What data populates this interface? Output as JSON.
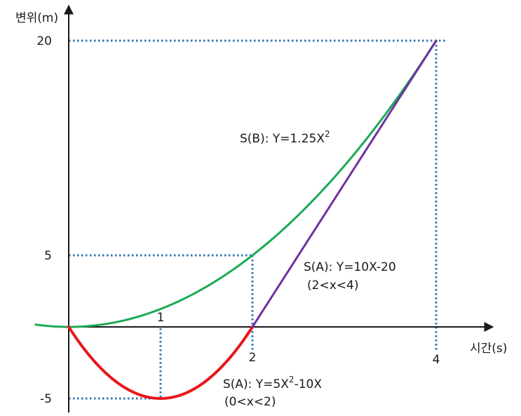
{
  "chart_data": {
    "type": "line",
    "ylabel": "변위(m)",
    "xlabel": "시간(s)",
    "x_ticks": [
      {
        "value": 1,
        "label": "1"
      },
      {
        "value": 2,
        "label": "2"
      },
      {
        "value": 4,
        "label": "4"
      }
    ],
    "y_ticks": [
      {
        "value": 20,
        "label": "20"
      },
      {
        "value": 5,
        "label": "5"
      },
      {
        "value": -5,
        "label": "-5"
      }
    ],
    "xlim": [
      -0.36,
      4.48
    ],
    "ylim": [
      -5,
      20
    ],
    "grid": false,
    "reference_points": [
      [
        4,
        20
      ],
      [
        2,
        5
      ],
      [
        1,
        -5
      ],
      [
        2,
        0
      ],
      [
        4,
        0
      ]
    ],
    "series": [
      {
        "color": "#1aaa55",
        "function": "y = 1.25 * x^2",
        "x": [
          -0.36,
          0,
          0.5,
          1,
          1.5,
          2,
          2.5,
          3,
          3.5,
          4
        ],
        "y": [
          0.162,
          0,
          0.3125,
          1.25,
          2.8125,
          5,
          7.8125,
          11.25,
          15.3125,
          20
        ]
      },
      {
        "color": "#e8161a",
        "function": "y = 5x^2 - 10x",
        "x": [
          0,
          0.25,
          0.5,
          0.75,
          1,
          1.25,
          1.5,
          1.75,
          2
        ],
        "y": [
          0,
          -2.1875,
          -3.75,
          -4.6875,
          -5,
          -4.6875,
          -3.75,
          -2.1875,
          0
        ]
      },
      {
        "color": "#7030a0",
        "function": "y = 10x - 20",
        "x": [
          2,
          4
        ],
        "y": [
          0,
          20
        ]
      }
    ],
    "annotations": {
      "sb": {
        "prefix": "S(B):  Y=1.25X",
        "sup": "2"
      },
      "sa_line": {
        "line1": "S(A):  Y=10X-20",
        "line2": "(2<x<4)"
      },
      "sa_curve": {
        "line1_prefix": "S(A):  Y=5X",
        "line1_sup": "2",
        "line1_suffix": "-10X",
        "line2": "(0<x<2)"
      }
    }
  }
}
